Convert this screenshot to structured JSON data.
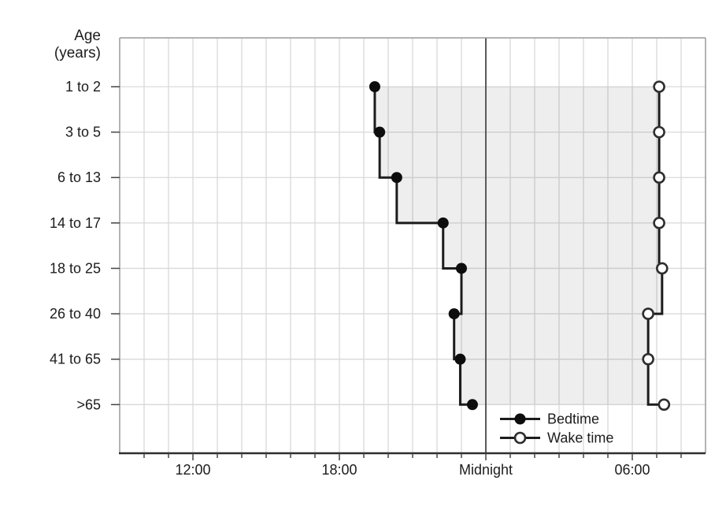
{
  "figure": {
    "background": "#ffffff",
    "colors": {
      "series_line": "#1c1c1c",
      "marker_fill": "#0d0d0d",
      "marker_open_fill": "#ffffff",
      "marker_open_stroke": "#2e2e2e",
      "gridline": "#d9d9d9",
      "midnight_line": "#5a5a5a",
      "frame": "#9a9a9a",
      "axis_line": "#2e2e2e",
      "tick": "#444444",
      "shade": "rgba(0,0,0,0.065)",
      "text": "#1c1c1c"
    }
  },
  "chart_data": {
    "type": "line",
    "variant": "step",
    "title": "",
    "y_axis_title_line1": "Age",
    "y_axis_title_line2": "(years)",
    "categories": [
      "1 to 2",
      "3 to 5",
      "6 to 13",
      "14 to 17",
      "18 to 25",
      "26 to 40",
      "41 to 65",
      ">65"
    ],
    "x_axis": {
      "unit": "time of day",
      "start_hour": 9,
      "end_hour": 33,
      "minor_tick_every_hours": 1,
      "labeled_ticks": [
        {
          "hour": 12,
          "label": "12:00"
        },
        {
          "hour": 18,
          "label": "18:00"
        },
        {
          "hour": 24,
          "label": "Midnight"
        },
        {
          "hour": 30,
          "label": "06:00"
        }
      ],
      "midnight_reference_line_hour": 24,
      "grid": true
    },
    "series": [
      {
        "name": "Bedtime",
        "marker": "filled-circle",
        "times": [
          "19:25",
          "19:40",
          "20:20",
          "22:15",
          "23:00",
          "22:40",
          "22:55",
          "23:25"
        ],
        "hours": [
          19.45,
          19.65,
          20.35,
          22.25,
          23.0,
          22.7,
          22.95,
          23.45
        ]
      },
      {
        "name": "Wake time",
        "marker": "open-circle",
        "times": [
          "07:05",
          "07:05",
          "07:05",
          "07:05",
          "07:15",
          "06:40",
          "06:40",
          "07:20"
        ],
        "hours": [
          31.1,
          31.1,
          31.1,
          31.1,
          31.22,
          30.65,
          30.65,
          31.3
        ]
      }
    ],
    "shaded_region": {
      "description": "sleep period between Bedtime and Wake time step lines",
      "color": "rgba(0,0,0,0.065)"
    },
    "legend": {
      "position": "inside-bottom",
      "items": [
        {
          "label": "Bedtime",
          "marker": "filled-circle"
        },
        {
          "label": "Wake time",
          "marker": "open-circle"
        }
      ]
    }
  }
}
